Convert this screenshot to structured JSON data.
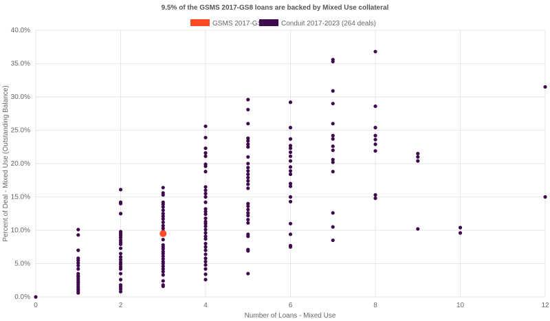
{
  "chart_data": {
    "type": "scatter",
    "title": "9.5% of the GSMS 2017-GS8 loans are backed by Mixed Use collateral",
    "xlabel": "Number of Loans - Mixed Use",
    "ylabel": "Percent of Deal - Mixed Use (Outstanding Balance)",
    "xlim": [
      0,
      12
    ],
    "ylim": [
      0,
      40
    ],
    "xticks": [
      "0",
      "2",
      "4",
      "6",
      "8",
      "10",
      "12"
    ],
    "yticks": [
      "0.0%",
      "5.0%",
      "10.0%",
      "15.0%",
      "20.0%",
      "25.0%",
      "30.0%",
      "35.0%",
      "40.0%"
    ],
    "grid": true,
    "legend_position": "top",
    "series": [
      {
        "name": "GSMS 2017-GS8",
        "color": "#ff4a26",
        "points": [
          [
            3,
            9.5
          ]
        ]
      },
      {
        "name": "Conduit 2017-2023 (264 deals)",
        "color": "#3f0a4d",
        "points": [
          [
            0,
            0
          ],
          [
            1,
            10.1
          ],
          [
            1,
            9.3
          ],
          [
            1,
            7.0
          ],
          [
            1,
            5.8
          ],
          [
            1,
            5.5
          ],
          [
            1,
            5.1
          ],
          [
            1,
            4.7
          ],
          [
            1,
            4.2
          ],
          [
            1,
            3.5
          ],
          [
            1,
            3.2
          ],
          [
            1,
            3.0
          ],
          [
            1,
            2.7
          ],
          [
            1,
            2.4
          ],
          [
            1,
            2.1
          ],
          [
            1,
            1.8
          ],
          [
            1,
            1.5
          ],
          [
            1,
            1.2
          ],
          [
            1,
            0.9
          ],
          [
            1,
            0.6
          ],
          [
            2,
            16.1
          ],
          [
            2,
            14.2
          ],
          [
            2,
            14.0
          ],
          [
            2,
            12.5
          ],
          [
            2,
            9.8
          ],
          [
            2,
            9.5
          ],
          [
            2,
            9.2
          ],
          [
            2,
            8.9
          ],
          [
            2,
            8.5
          ],
          [
            2,
            8.2
          ],
          [
            2,
            7.9
          ],
          [
            2,
            7.3
          ],
          [
            2,
            6.5
          ],
          [
            2,
            6.0
          ],
          [
            2,
            5.6
          ],
          [
            2,
            5.2
          ],
          [
            2,
            4.9
          ],
          [
            2,
            4.5
          ],
          [
            2,
            4.2
          ],
          [
            2,
            3.5
          ],
          [
            2,
            2.6
          ],
          [
            2,
            1.8
          ],
          [
            2,
            1.5
          ],
          [
            2,
            1.2
          ],
          [
            2,
            0.8
          ],
          [
            3,
            16.4
          ],
          [
            3,
            15.6
          ],
          [
            3,
            15.3
          ],
          [
            3,
            14.2
          ],
          [
            3,
            13.9
          ],
          [
            3,
            13.5
          ],
          [
            3,
            13.0
          ],
          [
            3,
            12.5
          ],
          [
            3,
            12.1
          ],
          [
            3,
            11.7
          ],
          [
            3,
            11.2
          ],
          [
            3,
            10.7
          ],
          [
            3,
            10.3
          ],
          [
            3,
            9.9
          ],
          [
            3,
            8.6
          ],
          [
            3,
            7.8
          ],
          [
            3,
            7.5
          ],
          [
            3,
            7.2
          ],
          [
            3,
            6.8
          ],
          [
            3,
            6.5
          ],
          [
            3,
            6.1
          ],
          [
            3,
            5.7
          ],
          [
            3,
            5.3
          ],
          [
            3,
            5.0
          ],
          [
            3,
            4.6
          ],
          [
            3,
            4.2
          ],
          [
            3,
            3.8
          ],
          [
            3,
            3.3
          ],
          [
            3,
            2.4
          ],
          [
            3,
            1.8
          ],
          [
            3,
            1.6
          ],
          [
            4,
            25.6
          ],
          [
            4,
            23.9
          ],
          [
            4,
            22.3
          ],
          [
            4,
            21.6
          ],
          [
            4,
            21.1
          ],
          [
            4,
            19.9
          ],
          [
            4,
            19.6
          ],
          [
            4,
            18.8
          ],
          [
            4,
            16.5
          ],
          [
            4,
            16.0
          ],
          [
            4,
            15.5
          ],
          [
            4,
            15.0
          ],
          [
            4,
            14.2
          ],
          [
            4,
            13.2
          ],
          [
            4,
            12.8
          ],
          [
            4,
            12.4
          ],
          [
            4,
            11.8
          ],
          [
            4,
            11.3
          ],
          [
            4,
            11.0
          ],
          [
            4,
            10.6
          ],
          [
            4,
            10.1
          ],
          [
            4,
            9.6
          ],
          [
            4,
            9.1
          ],
          [
            4,
            8.7
          ],
          [
            4,
            8.0
          ],
          [
            4,
            7.5
          ],
          [
            4,
            7.0
          ],
          [
            4,
            6.4
          ],
          [
            4,
            5.8
          ],
          [
            4,
            5.3
          ],
          [
            4,
            4.8
          ],
          [
            4,
            4.2
          ],
          [
            4,
            3.4
          ],
          [
            4,
            2.6
          ],
          [
            5,
            29.6
          ],
          [
            5,
            28.1
          ],
          [
            5,
            26.0
          ],
          [
            5,
            23.8
          ],
          [
            5,
            23.4
          ],
          [
            5,
            22.9
          ],
          [
            5,
            22.5
          ],
          [
            5,
            21.0
          ],
          [
            5,
            20.0
          ],
          [
            5,
            19.4
          ],
          [
            5,
            18.9
          ],
          [
            5,
            18.4
          ],
          [
            5,
            17.9
          ],
          [
            5,
            17.4
          ],
          [
            5,
            16.9
          ],
          [
            5,
            16.3
          ],
          [
            5,
            14.0
          ],
          [
            5,
            13.6
          ],
          [
            5,
            13.1
          ],
          [
            5,
            12.6
          ],
          [
            5,
            12.2
          ],
          [
            5,
            11.6
          ],
          [
            5,
            11.1
          ],
          [
            5,
            9.4
          ],
          [
            5,
            9.1
          ],
          [
            5,
            7.1
          ],
          [
            5,
            6.9
          ],
          [
            5,
            3.5
          ],
          [
            6,
            29.2
          ],
          [
            6,
            25.4
          ],
          [
            6,
            23.7
          ],
          [
            6,
            22.7
          ],
          [
            6,
            22.3
          ],
          [
            6,
            21.7
          ],
          [
            6,
            21.1
          ],
          [
            6,
            20.4
          ],
          [
            6,
            19.5
          ],
          [
            6,
            18.9
          ],
          [
            6,
            18.4
          ],
          [
            6,
            17.0
          ],
          [
            6,
            16.6
          ],
          [
            6,
            15.0
          ],
          [
            6,
            14.3
          ],
          [
            6,
            11.0
          ],
          [
            6,
            9.4
          ],
          [
            6,
            7.7
          ],
          [
            6,
            7.5
          ],
          [
            7,
            35.6
          ],
          [
            7,
            35.3
          ],
          [
            7,
            30.9
          ],
          [
            7,
            29.0
          ],
          [
            7,
            26.0
          ],
          [
            7,
            24.2
          ],
          [
            7,
            23.7
          ],
          [
            7,
            22.6
          ],
          [
            7,
            22.0
          ],
          [
            7,
            20.6
          ],
          [
            7,
            20.2
          ],
          [
            7,
            18.8
          ],
          [
            7,
            12.6
          ],
          [
            7,
            10.5
          ],
          [
            7,
            8.5
          ],
          [
            8,
            36.8
          ],
          [
            8,
            28.6
          ],
          [
            8,
            25.4
          ],
          [
            8,
            24.2
          ],
          [
            8,
            23.6
          ],
          [
            8,
            22.9
          ],
          [
            8,
            21.9
          ],
          [
            8,
            15.3
          ],
          [
            8,
            14.8
          ],
          [
            9,
            21.5
          ],
          [
            9,
            21.0
          ],
          [
            9,
            20.4
          ],
          [
            9,
            10.2
          ],
          [
            10,
            10.4
          ],
          [
            10,
            9.6
          ],
          [
            12,
            31.5
          ],
          [
            12,
            15.0
          ]
        ]
      }
    ]
  }
}
